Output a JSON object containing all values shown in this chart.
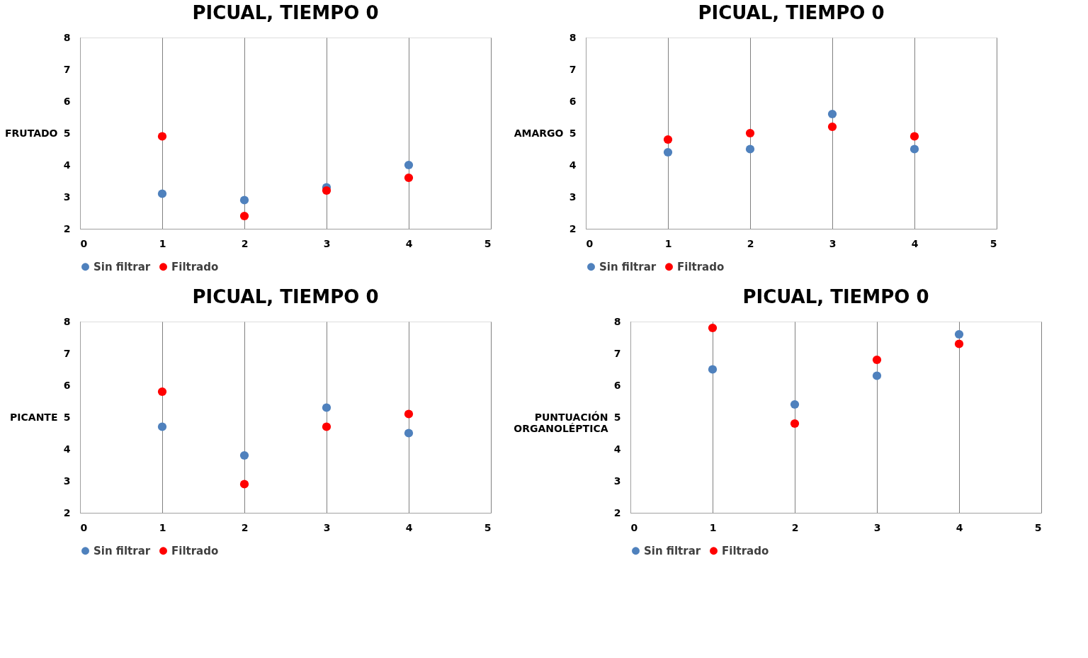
{
  "chart_data": [
    {
      "type": "scatter",
      "title": "PICUAL, TIEMPO 0",
      "ylabel": "FRUTADO",
      "x": [
        1,
        2,
        3,
        4
      ],
      "xlim": [
        0,
        5
      ],
      "xticks": [
        0,
        1,
        2,
        3,
        4,
        5
      ],
      "ylim": [
        2,
        8
      ],
      "yticks": [
        2,
        3,
        4,
        5,
        6,
        7,
        8
      ],
      "grid": "x",
      "legend": "bottom",
      "marker": "circle",
      "series": [
        {
          "name": "Sin filtrar",
          "color": "#4f81bd",
          "values": [
            3.1,
            2.9,
            3.3,
            4.0
          ]
        },
        {
          "name": "Filtrado",
          "color": "#ff0000",
          "values": [
            4.9,
            2.4,
            3.2,
            3.6
          ]
        }
      ]
    },
    {
      "type": "scatter",
      "title": "PICUAL, TIEMPO 0",
      "ylabel": "AMARGO",
      "x": [
        1,
        2,
        3,
        4
      ],
      "xlim": [
        0,
        5
      ],
      "xticks": [
        0,
        1,
        2,
        3,
        4,
        5
      ],
      "ylim": [
        2,
        8
      ],
      "yticks": [
        2,
        3,
        4,
        5,
        6,
        7,
        8
      ],
      "grid": "x",
      "legend": "bottom",
      "marker": "circle",
      "series": [
        {
          "name": "Sin filtrar",
          "color": "#4f81bd",
          "values": [
            4.4,
            4.5,
            5.6,
            4.5
          ]
        },
        {
          "name": "Filtrado",
          "color": "#ff0000",
          "values": [
            4.8,
            5.0,
            5.2,
            4.9
          ]
        }
      ]
    },
    {
      "type": "scatter",
      "title": "PICUAL, TIEMPO 0",
      "ylabel": "PICANTE",
      "x": [
        1,
        2,
        3,
        4
      ],
      "xlim": [
        0,
        5
      ],
      "xticks": [
        0,
        1,
        2,
        3,
        4,
        5
      ],
      "ylim": [
        2,
        8
      ],
      "yticks": [
        2,
        3,
        4,
        5,
        6,
        7,
        8
      ],
      "grid": "x",
      "legend": "bottom",
      "marker": "circle",
      "series": [
        {
          "name": "Sin filtrar",
          "color": "#4f81bd",
          "values": [
            4.7,
            3.8,
            5.3,
            4.5
          ]
        },
        {
          "name": "Filtrado",
          "color": "#ff0000",
          "values": [
            5.8,
            2.9,
            4.7,
            5.1
          ]
        }
      ]
    },
    {
      "type": "scatter",
      "title": "PICUAL, TIEMPO 0",
      "ylabel": "PUNTUACIÓN ORGANOLÉPTICA",
      "x": [
        1,
        2,
        3,
        4
      ],
      "xlim": [
        0,
        5
      ],
      "xticks": [
        0,
        1,
        2,
        3,
        4,
        5
      ],
      "ylim": [
        2,
        8
      ],
      "yticks": [
        2,
        3,
        4,
        5,
        6,
        7,
        8
      ],
      "grid": "x",
      "legend": "bottom",
      "marker": "circle",
      "series": [
        {
          "name": "Sin filtrar",
          "color": "#4f81bd",
          "values": [
            6.5,
            5.4,
            6.3,
            7.6
          ]
        },
        {
          "name": "Filtrado",
          "color": "#ff0000",
          "values": [
            7.8,
            4.8,
            6.8,
            7.3
          ]
        }
      ]
    }
  ]
}
